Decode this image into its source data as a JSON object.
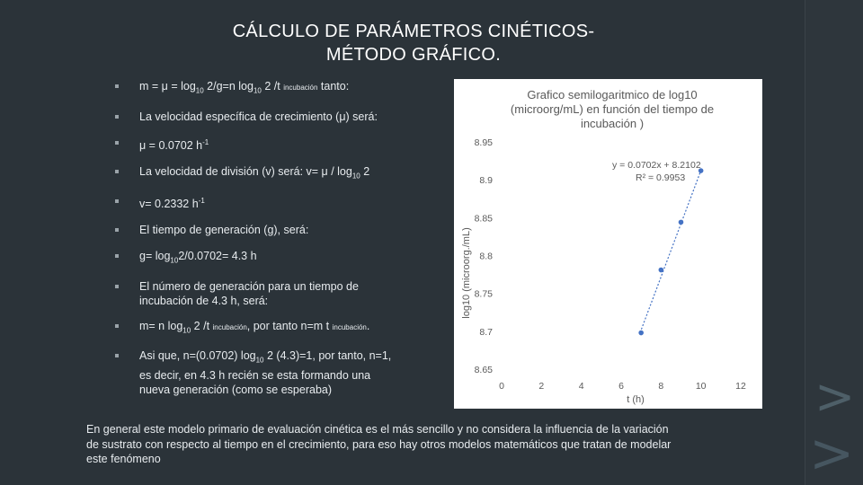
{
  "slide": {
    "title_line1": "CÁLCULO DE PARÁMETROS CINÉTICOS-",
    "title_line2": "MÉTODO GRÁFICO."
  },
  "bullets": {
    "b1": {
      "p1": "m = μ = log",
      "p2": "10",
      "p3": " 2/g=n log",
      "p4": "10",
      "p5": " 2 /t ",
      "p6": "incubación",
      "p7": " tanto:"
    },
    "b2": {
      "text": "La velocidad específica de crecimiento (μ) será:"
    },
    "b3": {
      "p1": "μ = 0.0702 h",
      "p2": "-1"
    },
    "b4": {
      "p1": "La velocidad de división (v) será:  v= μ / log",
      "p2": "10",
      "p3": " 2"
    },
    "b5": {
      "p1": "v= 0.2332 h",
      "p2": "-1"
    },
    "b6": {
      "text": "El tiempo de generación (g), será:"
    },
    "b7": {
      "p1": "g= log",
      "p2": "10",
      "p3": "2/0.0702= 4.3 h"
    },
    "b8": {
      "line1": "El número de generación para un tiempo de",
      "line2": "incubación de 4.3 h, será:"
    },
    "b9": {
      "p1": "m= n log",
      "p2": "10",
      "p3": " 2 /t ",
      "p4": "incubación",
      "p5": ", por tanto n=m t ",
      "p6": "incubación",
      "p7": "."
    },
    "b10": {
      "p1": "Asi que, n=(0.0702) log",
      "p2": "10",
      "p3": " 2 (4.3)=1, por tanto, n=1,",
      "line2": "es decir, en 4.3 h recién se esta formando una",
      "line3": "nueva generación (como se esperaba)"
    }
  },
  "footer": {
    "line1": "En general este modelo primario de evaluación cinética es el más sencillo y no considera la influencia de la variación",
    "line2": "de sustrato con respecto al tiempo en el crecimiento, para eso hay otros modelos matemáticos que tratan de modelar",
    "line3": "este fenómeno"
  },
  "chart_data": {
    "type": "scatter",
    "title_line1": "Grafico semilogaritmico de log10",
    "title_line2": "(microorg/mL) en función del tiempo de",
    "title_line3": "incubación )",
    "xlabel": "t (h)",
    "ylabel": "log10 (microorg./mL)",
    "xlim": [
      0,
      12
    ],
    "ylim": [
      8.65,
      8.95
    ],
    "xticks": [
      "0",
      "2",
      "4",
      "6",
      "8",
      "10",
      "12"
    ],
    "yticks": [
      "8.65",
      "8.7",
      "8.75",
      "8.8",
      "8.85",
      "8.9",
      "8.95"
    ],
    "x": [
      7,
      8,
      9,
      10
    ],
    "y": [
      8.698,
      8.781,
      8.844,
      8.912
    ],
    "trendline": {
      "slope": 0.0702,
      "intercept": 8.2102
    },
    "equation": "y = 0.0702x + 8.2102",
    "r2": "R² = 0.9953",
    "series_color": "#4472c4",
    "grid": false
  }
}
